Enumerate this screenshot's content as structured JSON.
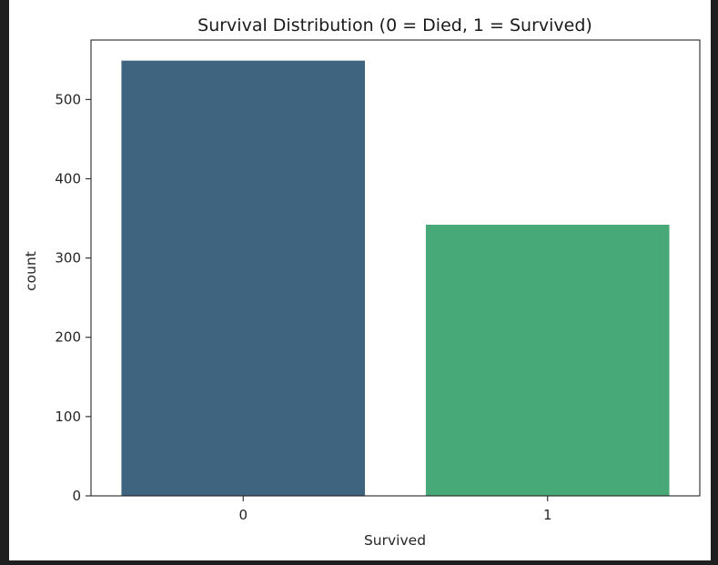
{
  "chart_data": {
    "type": "bar",
    "title": "Survival Distribution (0 = Died, 1 = Survived)",
    "xlabel": "Survived",
    "ylabel": "count",
    "categories": [
      "0",
      "1"
    ],
    "values": [
      549,
      342
    ],
    "colors": [
      "#3e6480",
      "#47a878"
    ],
    "ylim": [
      0,
      575
    ],
    "yticks": [
      "0",
      "100",
      "200",
      "300",
      "400",
      "500"
    ],
    "grid": false,
    "legend": "none"
  }
}
